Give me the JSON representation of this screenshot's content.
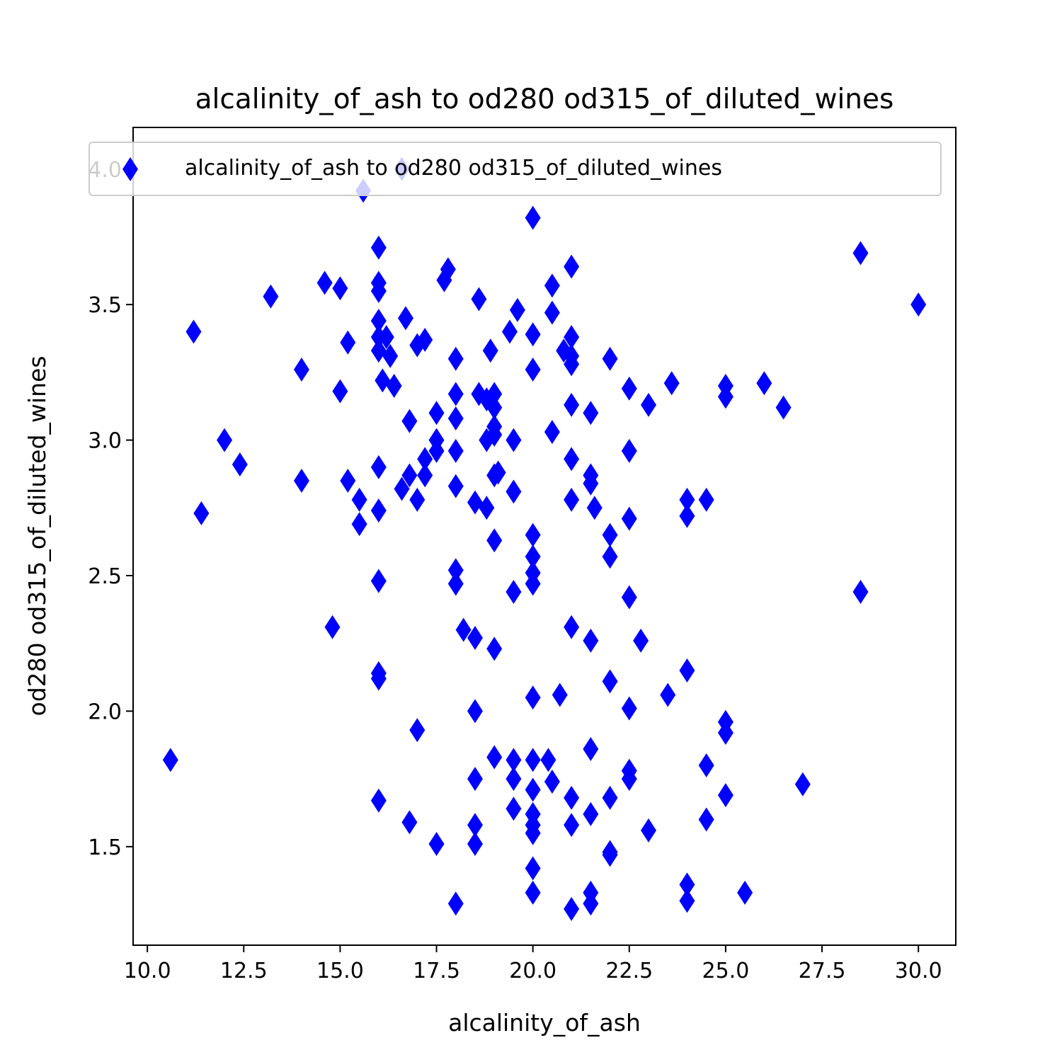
{
  "chart_data": {
    "type": "scatter",
    "title": "alcalinity_of_ash to od280 od315_of_diluted_wines",
    "xlabel": "alcalinity_of_ash",
    "ylabel": "od280 od315_of_diluted_wines",
    "xlim": [
      9.63,
      30.97
    ],
    "ylim": [
      1.1365,
      4.1535
    ],
    "x_ticks": [
      10.0,
      12.5,
      15.0,
      17.5,
      20.0,
      22.5,
      25.0,
      27.5,
      30.0
    ],
    "x_tick_labels": [
      "10.0",
      "12.5",
      "15.0",
      "17.5",
      "20.0",
      "22.5",
      "25.0",
      "27.5",
      "30.0"
    ],
    "y_ticks": [
      1.5,
      2.0,
      2.5,
      3.0,
      3.5,
      4.0
    ],
    "y_tick_labels": [
      "1.5",
      "2.0",
      "2.5",
      "3.0",
      "3.5",
      "4.0"
    ],
    "grid": false,
    "legend": {
      "position": "top-right",
      "entries": [
        "alcalinity_of_ash to od280 od315_of_diluted_wines"
      ]
    },
    "marker": "thin_diamond",
    "color": "#0000ff",
    "points": [
      [
        10.6,
        1.82
      ],
      [
        11.2,
        3.4
      ],
      [
        11.4,
        2.73
      ],
      [
        12.0,
        3.0
      ],
      [
        12.4,
        2.91
      ],
      [
        13.2,
        3.53
      ],
      [
        14.0,
        3.26
      ],
      [
        14.0,
        2.85
      ],
      [
        14.6,
        3.58
      ],
      [
        14.8,
        2.31
      ],
      [
        15.0,
        3.56
      ],
      [
        15.0,
        3.18
      ],
      [
        15.2,
        3.36
      ],
      [
        15.2,
        2.85
      ],
      [
        15.5,
        2.78
      ],
      [
        15.5,
        2.69
      ],
      [
        15.6,
        3.92
      ],
      [
        16.0,
        3.71
      ],
      [
        16.0,
        3.58
      ],
      [
        16.0,
        3.55
      ],
      [
        16.0,
        3.44
      ],
      [
        16.0,
        3.38
      ],
      [
        16.0,
        3.33
      ],
      [
        16.0,
        2.9
      ],
      [
        16.0,
        2.74
      ],
      [
        16.0,
        2.48
      ],
      [
        16.0,
        2.14
      ],
      [
        16.0,
        2.12
      ],
      [
        16.0,
        1.67
      ],
      [
        16.1,
        3.22
      ],
      [
        16.2,
        3.38
      ],
      [
        16.3,
        3.31
      ],
      [
        16.4,
        3.2
      ],
      [
        16.6,
        4.0
      ],
      [
        16.6,
        2.82
      ],
      [
        16.7,
        3.45
      ],
      [
        16.8,
        3.07
      ],
      [
        16.8,
        2.87
      ],
      [
        16.8,
        1.59
      ],
      [
        17.0,
        3.35
      ],
      [
        17.0,
        2.78
      ],
      [
        17.0,
        1.93
      ],
      [
        17.2,
        3.37
      ],
      [
        17.2,
        2.93
      ],
      [
        17.2,
        2.87
      ],
      [
        17.5,
        3.1
      ],
      [
        17.5,
        3.0
      ],
      [
        17.5,
        2.96
      ],
      [
        17.5,
        1.51
      ],
      [
        17.7,
        3.59
      ],
      [
        17.8,
        3.63
      ],
      [
        18.0,
        3.3
      ],
      [
        18.0,
        3.17
      ],
      [
        18.0,
        3.08
      ],
      [
        18.0,
        2.96
      ],
      [
        18.0,
        2.83
      ],
      [
        18.0,
        2.52
      ],
      [
        18.0,
        2.47
      ],
      [
        18.0,
        1.29
      ],
      [
        18.2,
        2.3
      ],
      [
        18.5,
        2.77
      ],
      [
        18.5,
        2.27
      ],
      [
        18.5,
        2.0
      ],
      [
        18.5,
        1.75
      ],
      [
        18.5,
        1.58
      ],
      [
        18.5,
        1.51
      ],
      [
        18.6,
        3.52
      ],
      [
        18.6,
        3.17
      ],
      [
        18.8,
        3.15
      ],
      [
        18.8,
        3.0
      ],
      [
        18.8,
        2.75
      ],
      [
        18.9,
        3.33
      ],
      [
        19.0,
        3.17
      ],
      [
        19.0,
        3.12
      ],
      [
        19.0,
        3.05
      ],
      [
        19.0,
        3.02
      ],
      [
        19.0,
        2.87
      ],
      [
        19.0,
        2.63
      ],
      [
        19.0,
        2.23
      ],
      [
        19.0,
        1.83
      ],
      [
        19.1,
        2.88
      ],
      [
        19.4,
        3.4
      ],
      [
        19.5,
        3.0
      ],
      [
        19.5,
        2.81
      ],
      [
        19.5,
        2.44
      ],
      [
        19.5,
        1.82
      ],
      [
        19.5,
        1.75
      ],
      [
        19.5,
        1.64
      ],
      [
        19.6,
        3.48
      ],
      [
        20.0,
        3.82
      ],
      [
        20.0,
        3.39
      ],
      [
        20.0,
        3.26
      ],
      [
        20.0,
        2.65
      ],
      [
        20.0,
        2.57
      ],
      [
        20.0,
        2.51
      ],
      [
        20.0,
        2.47
      ],
      [
        20.0,
        2.05
      ],
      [
        20.0,
        1.82
      ],
      [
        20.0,
        1.71
      ],
      [
        20.0,
        1.62
      ],
      [
        20.0,
        1.58
      ],
      [
        20.0,
        1.55
      ],
      [
        20.0,
        1.42
      ],
      [
        20.0,
        1.33
      ],
      [
        20.4,
        1.82
      ],
      [
        20.5,
        3.57
      ],
      [
        20.5,
        3.47
      ],
      [
        20.5,
        3.03
      ],
      [
        20.5,
        1.74
      ],
      [
        20.7,
        2.06
      ],
      [
        20.8,
        3.33
      ],
      [
        21.0,
        3.64
      ],
      [
        21.0,
        3.38
      ],
      [
        21.0,
        3.31
      ],
      [
        21.0,
        3.28
      ],
      [
        21.0,
        3.13
      ],
      [
        21.0,
        2.93
      ],
      [
        21.0,
        2.78
      ],
      [
        21.0,
        2.31
      ],
      [
        21.0,
        1.68
      ],
      [
        21.0,
        1.58
      ],
      [
        21.0,
        1.27
      ],
      [
        21.5,
        3.1
      ],
      [
        21.5,
        2.87
      ],
      [
        21.5,
        2.84
      ],
      [
        21.5,
        2.26
      ],
      [
        21.5,
        1.86
      ],
      [
        21.5,
        1.62
      ],
      [
        21.5,
        1.33
      ],
      [
        21.5,
        1.29
      ],
      [
        21.6,
        2.75
      ],
      [
        22.0,
        3.3
      ],
      [
        22.0,
        2.65
      ],
      [
        22.0,
        2.57
      ],
      [
        22.0,
        2.11
      ],
      [
        22.0,
        1.68
      ],
      [
        22.0,
        1.48
      ],
      [
        22.0,
        1.47
      ],
      [
        22.5,
        3.19
      ],
      [
        22.5,
        2.96
      ],
      [
        22.5,
        2.71
      ],
      [
        22.5,
        2.42
      ],
      [
        22.5,
        2.01
      ],
      [
        22.5,
        1.78
      ],
      [
        22.5,
        1.75
      ],
      [
        22.8,
        2.26
      ],
      [
        23.0,
        3.13
      ],
      [
        23.0,
        1.56
      ],
      [
        23.5,
        2.06
      ],
      [
        23.6,
        3.21
      ],
      [
        24.0,
        2.78
      ],
      [
        24.0,
        2.72
      ],
      [
        24.0,
        2.15
      ],
      [
        24.0,
        1.36
      ],
      [
        24.0,
        1.3
      ],
      [
        24.5,
        2.78
      ],
      [
        24.5,
        1.8
      ],
      [
        24.5,
        1.6
      ],
      [
        25.0,
        3.2
      ],
      [
        25.0,
        3.16
      ],
      [
        25.0,
        1.96
      ],
      [
        25.0,
        1.92
      ],
      [
        25.0,
        1.69
      ],
      [
        25.5,
        1.33
      ],
      [
        26.0,
        3.21
      ],
      [
        26.5,
        3.12
      ],
      [
        27.0,
        1.73
      ],
      [
        28.5,
        3.69
      ],
      [
        28.5,
        2.44
      ],
      [
        30.0,
        3.5
      ]
    ]
  }
}
